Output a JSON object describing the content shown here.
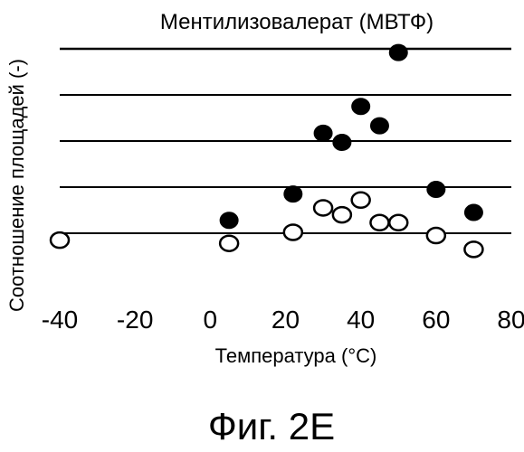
{
  "chart_data": {
    "type": "scatter",
    "title": "Ментилизовалерат (МВТФ)",
    "xlabel": "Температура (°С)",
    "ylabel": "Соотношение площадей (-)",
    "xlim": [
      -40,
      80
    ],
    "xticks": [
      "-40",
      "-20",
      "0",
      "20",
      "40",
      "60",
      "80"
    ],
    "grid": "horizontal",
    "series": [
      {
        "style": "filled-circle",
        "color": "#000000",
        "x": [
          5,
          22,
          30,
          35,
          40,
          45,
          50,
          60,
          70
        ],
        "y": [
          0.28,
          0.85,
          2.17,
          1.97,
          2.75,
          2.33,
          3.92,
          0.95,
          0.45
        ]
      },
      {
        "style": "open-circle",
        "color": "#000000",
        "x": [
          -40,
          5,
          22,
          30,
          35,
          40,
          45,
          50,
          60,
          70
        ],
        "y": [
          -0.15,
          -0.22,
          0.02,
          0.55,
          0.4,
          0.72,
          0.23,
          0.23,
          -0.05,
          -0.35
        ]
      }
    ]
  },
  "figure": {
    "caption": "Фиг. 2E"
  },
  "colors": {
    "ink": "#000000",
    "background": "#ffffff"
  }
}
